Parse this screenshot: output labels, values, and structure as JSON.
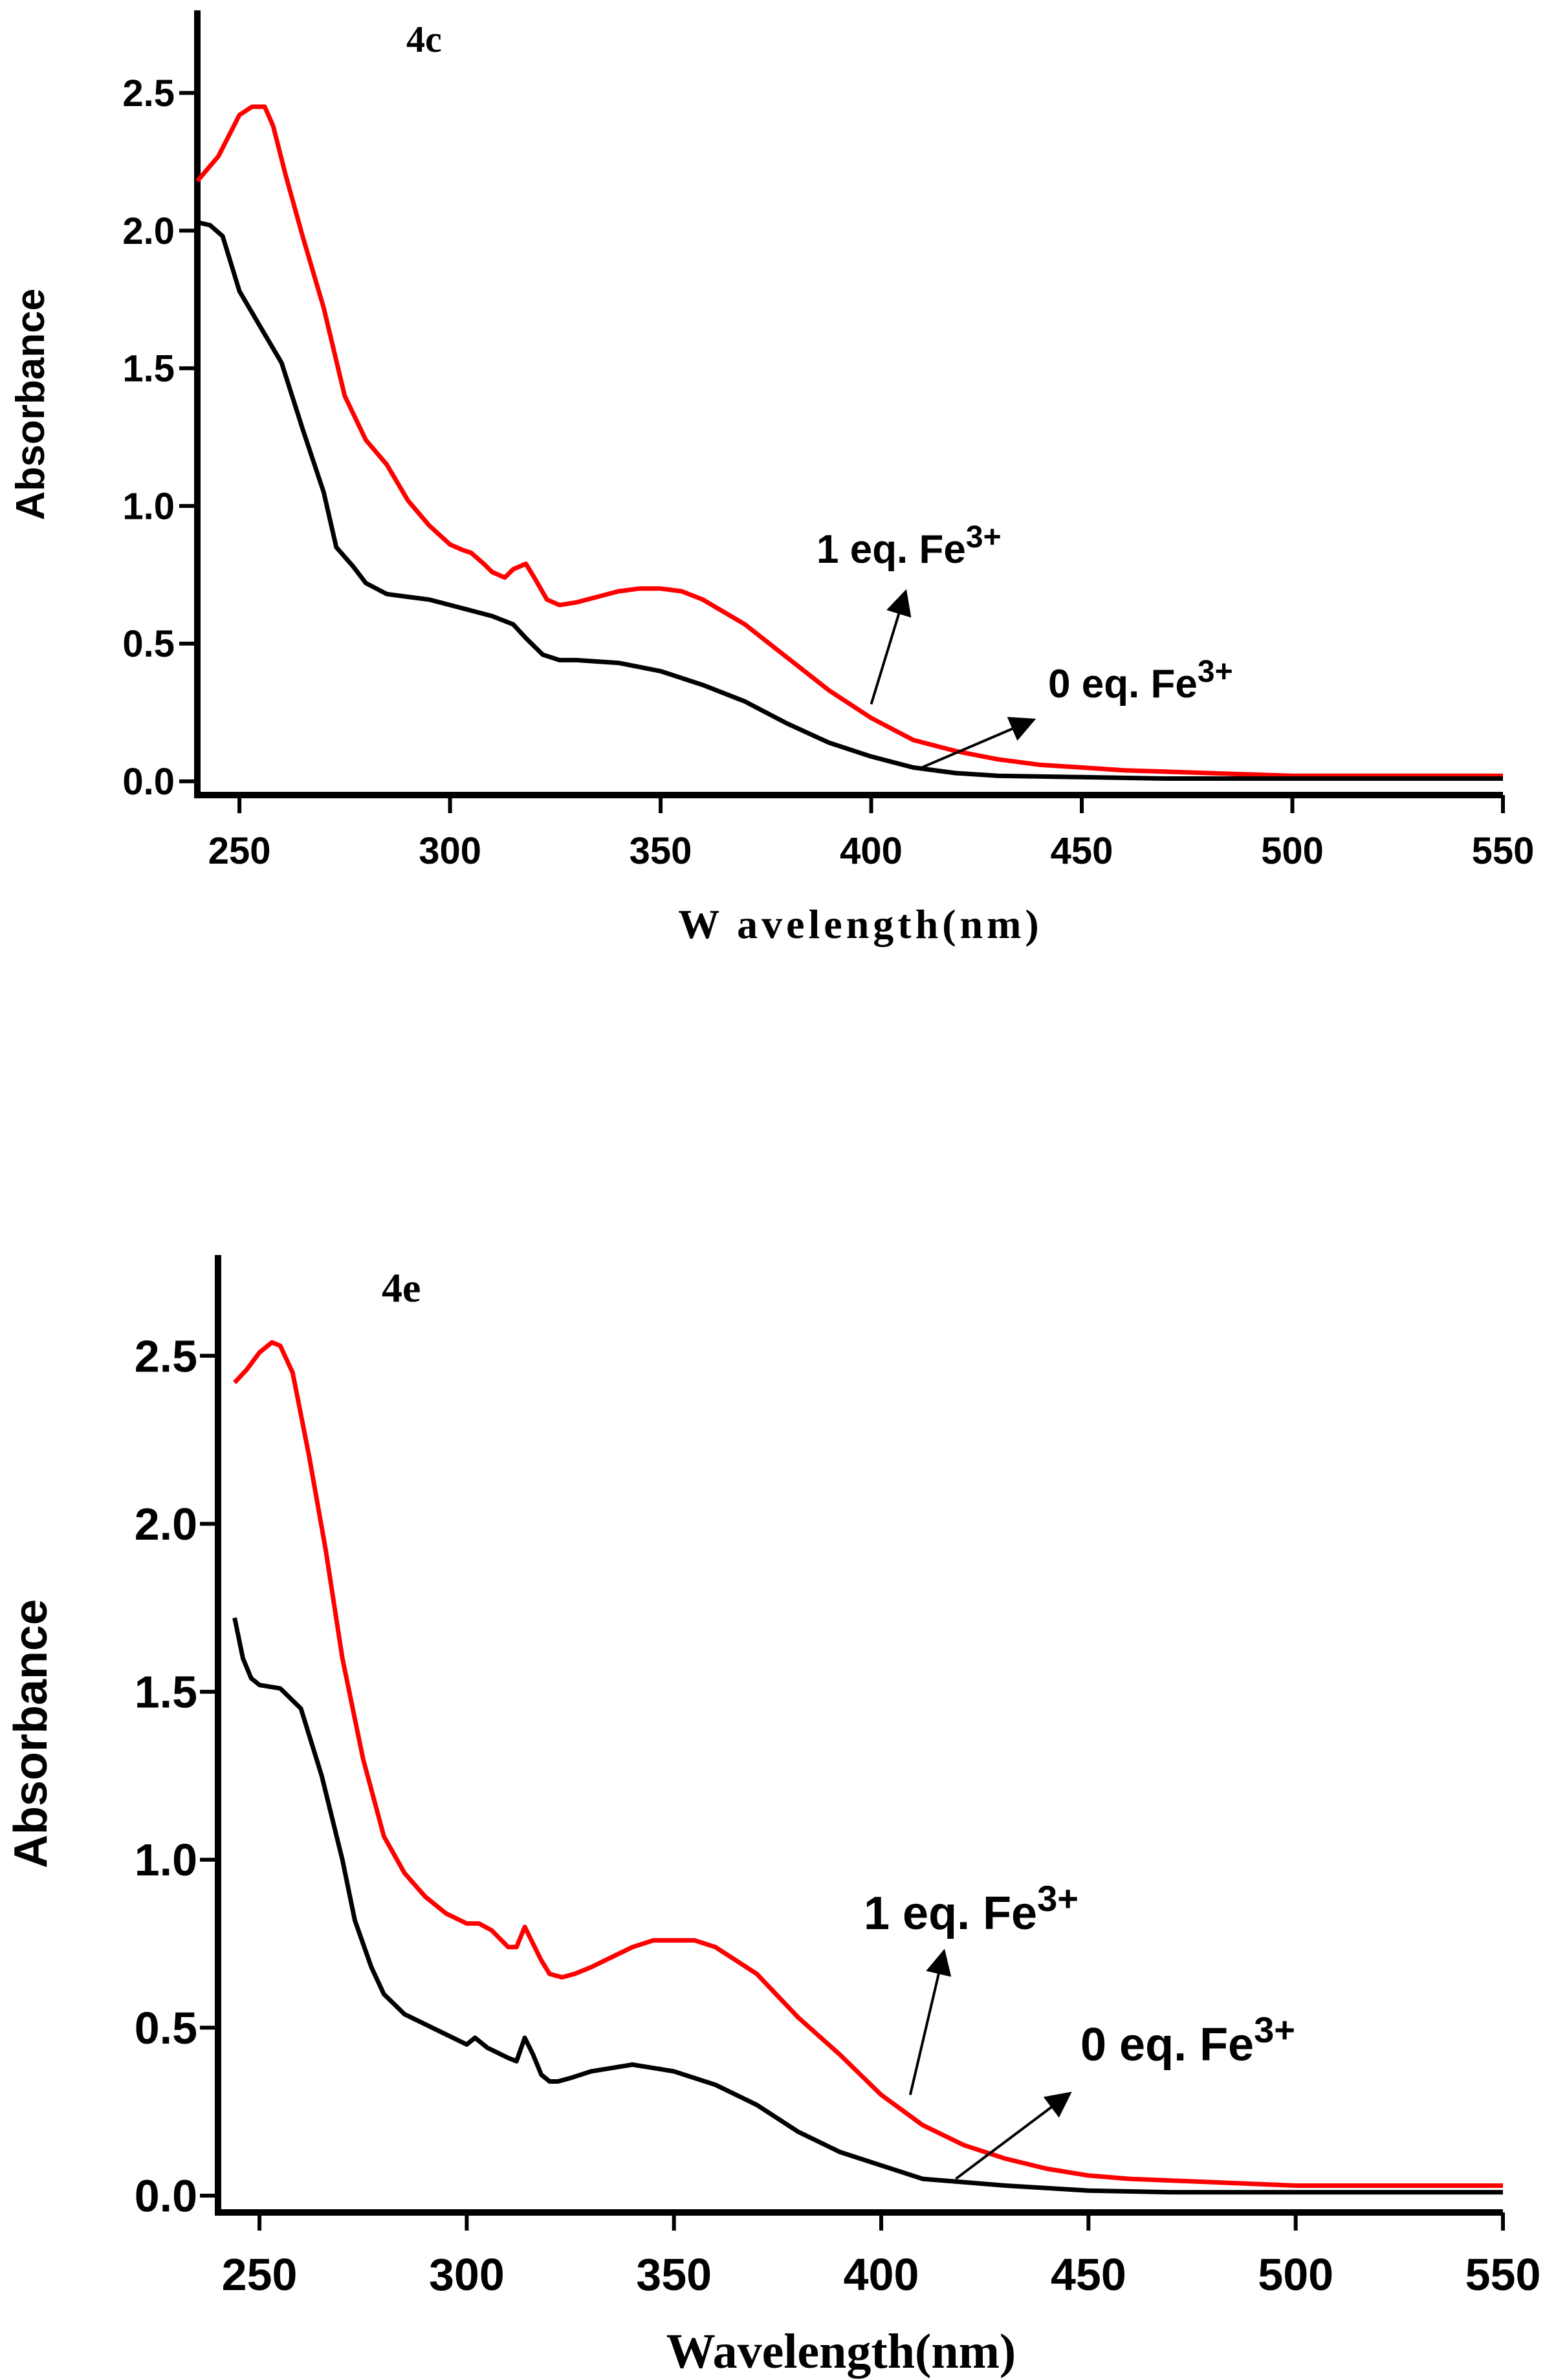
{
  "chart_data": [
    {
      "type": "line",
      "panel_label": "4c",
      "xlabel": "W avelength(nm)",
      "ylabel": "Absorbance",
      "xlim": [
        240,
        550
      ],
      "ylim": [
        -0.05,
        2.8
      ],
      "xticks": [
        250,
        300,
        350,
        400,
        450,
        500,
        550
      ],
      "xtick_labels": [
        "250",
        "300",
        "350",
        "400",
        "450",
        "500",
        "550"
      ],
      "yticks": [
        0.0,
        0.5,
        1.0,
        1.5,
        2.0,
        2.5
      ],
      "ytick_labels": [
        "0.0",
        "0.5",
        "1.0",
        "1.5",
        "2.0",
        "2.5"
      ],
      "grid": false,
      "series": [
        {
          "name": "1 eq. Fe3+",
          "color": "#ff0000",
          "x": [
            240,
            245,
            250,
            253,
            256,
            258,
            261,
            265,
            270,
            275,
            280,
            285,
            290,
            295,
            300,
            303,
            305,
            308,
            310,
            313,
            315,
            318,
            320,
            323,
            326,
            330,
            335,
            340,
            345,
            350,
            355,
            360,
            370,
            380,
            390,
            400,
            410,
            420,
            430,
            440,
            450,
            460,
            480,
            500,
            520,
            550
          ],
          "y": [
            2.18,
            2.27,
            2.42,
            2.45,
            2.45,
            2.38,
            2.2,
            1.98,
            1.72,
            1.4,
            1.24,
            1.15,
            1.02,
            0.93,
            0.86,
            0.84,
            0.83,
            0.79,
            0.76,
            0.74,
            0.77,
            0.79,
            0.74,
            0.66,
            0.64,
            0.65,
            0.67,
            0.69,
            0.7,
            0.7,
            0.69,
            0.66,
            0.57,
            0.45,
            0.33,
            0.23,
            0.15,
            0.11,
            0.08,
            0.06,
            0.05,
            0.04,
            0.03,
            0.02,
            0.02,
            0.02
          ]
        },
        {
          "name": "0 eq. Fe3+",
          "color": "#000000",
          "x": [
            240,
            243,
            246,
            250,
            255,
            260,
            265,
            270,
            273,
            277,
            280,
            285,
            290,
            295,
            300,
            305,
            310,
            315,
            318,
            322,
            326,
            330,
            340,
            350,
            360,
            370,
            380,
            390,
            400,
            410,
            420,
            430,
            450,
            470,
            490,
            500,
            520,
            550
          ],
          "y": [
            2.03,
            2.02,
            1.98,
            1.78,
            1.65,
            1.52,
            1.28,
            1.05,
            0.85,
            0.78,
            0.72,
            0.68,
            0.67,
            0.66,
            0.64,
            0.62,
            0.6,
            0.57,
            0.52,
            0.46,
            0.44,
            0.44,
            0.43,
            0.4,
            0.35,
            0.29,
            0.21,
            0.14,
            0.09,
            0.05,
            0.03,
            0.02,
            0.015,
            0.01,
            0.01,
            0.01,
            0.01,
            0.01
          ]
        }
      ],
      "annotations": [
        {
          "text": "1 eq. Fe",
          "sup": "3+",
          "arrow_from": [
            400,
            0.28
          ],
          "arrow_to": [
            408,
            0.68
          ]
        },
        {
          "text": "0 eq. Fe",
          "sup": "3+",
          "arrow_from": [
            412,
            0.05
          ],
          "arrow_to": [
            438,
            0.22
          ]
        }
      ]
    },
    {
      "type": "line",
      "panel_label": "4e",
      "xlabel": "Wavelength(nm)",
      "ylabel": "Absorbance",
      "xlim": [
        240,
        550
      ],
      "ylim": [
        -0.05,
        2.8
      ],
      "xticks": [
        250,
        300,
        350,
        400,
        450,
        500,
        550
      ],
      "xtick_labels": [
        "250",
        "300",
        "350",
        "400",
        "450",
        "500",
        "550"
      ],
      "yticks": [
        0.0,
        0.5,
        1.0,
        1.5,
        2.0,
        2.5
      ],
      "ytick_labels": [
        "0.0",
        "0.5",
        "1.0",
        "1.5",
        "2.0",
        "2.5"
      ],
      "grid": false,
      "series": [
        {
          "name": "1 eq. Fe3+",
          "color": "#ff0000",
          "x": [
            244,
            247,
            250,
            253,
            255,
            258,
            262,
            266,
            270,
            275,
            280,
            285,
            290,
            295,
            300,
            303,
            306,
            310,
            312,
            314,
            316,
            318,
            320,
            323,
            326,
            330,
            335,
            340,
            345,
            350,
            355,
            360,
            370,
            380,
            390,
            400,
            410,
            420,
            430,
            440,
            450,
            460,
            480,
            500,
            520,
            550
          ],
          "y": [
            2.42,
            2.46,
            2.51,
            2.54,
            2.53,
            2.45,
            2.2,
            1.92,
            1.6,
            1.3,
            1.07,
            0.96,
            0.89,
            0.84,
            0.81,
            0.81,
            0.79,
            0.74,
            0.74,
            0.8,
            0.75,
            0.7,
            0.66,
            0.65,
            0.66,
            0.68,
            0.71,
            0.74,
            0.76,
            0.76,
            0.76,
            0.74,
            0.66,
            0.53,
            0.42,
            0.3,
            0.21,
            0.15,
            0.11,
            0.08,
            0.06,
            0.05,
            0.04,
            0.03,
            0.03,
            0.03
          ]
        },
        {
          "name": "0 eq. Fe3+",
          "color": "#000000",
          "x": [
            244,
            246,
            248,
            250,
            255,
            260,
            265,
            270,
            273,
            277,
            280,
            285,
            290,
            295,
            300,
            302,
            305,
            310,
            312,
            314,
            316,
            318,
            320,
            322,
            325,
            330,
            335,
            340,
            345,
            350,
            360,
            370,
            380,
            390,
            400,
            410,
            420,
            430,
            450,
            470,
            490,
            500,
            520,
            550
          ],
          "y": [
            1.72,
            1.6,
            1.54,
            1.52,
            1.51,
            1.45,
            1.25,
            1.0,
            0.82,
            0.68,
            0.6,
            0.54,
            0.51,
            0.48,
            0.45,
            0.47,
            0.44,
            0.41,
            0.4,
            0.47,
            0.42,
            0.36,
            0.34,
            0.34,
            0.35,
            0.37,
            0.38,
            0.39,
            0.38,
            0.37,
            0.33,
            0.27,
            0.19,
            0.13,
            0.09,
            0.05,
            0.04,
            0.03,
            0.015,
            0.01,
            0.01,
            0.01,
            0.01,
            0.01
          ]
        }
      ],
      "annotations": [
        {
          "text": "1 eq. Fe",
          "sup": "3+",
          "arrow_from": [
            407,
            0.3
          ],
          "arrow_to": [
            415,
            0.72
          ]
        },
        {
          "text": "0 eq. Fe",
          "sup": "3+",
          "arrow_from": [
            418,
            0.05
          ],
          "arrow_to": [
            445,
            0.3
          ]
        }
      ]
    }
  ]
}
